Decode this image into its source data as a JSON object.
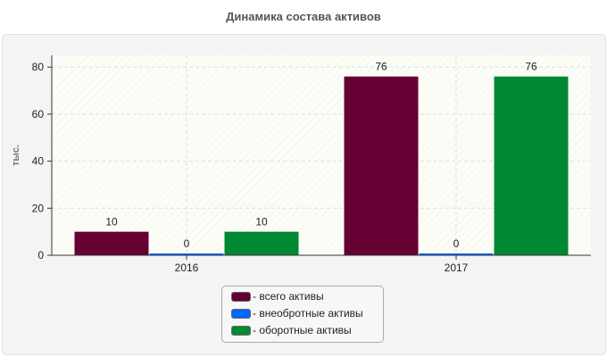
{
  "chart_data": {
    "type": "bar",
    "title": "Динамика состава активов",
    "ylabel": "тыс.",
    "xlabel": "",
    "categories": [
      "2016",
      "2017"
    ],
    "ylim": [
      0,
      85
    ],
    "yticks": [
      0,
      20,
      40,
      60,
      80
    ],
    "grid": true,
    "legend_position": "bottom",
    "series": [
      {
        "name": "- всего активы",
        "values": [
          10,
          76
        ],
        "color": "#660033"
      },
      {
        "name": "- внеобротные активы",
        "values": [
          0,
          0
        ],
        "color": "#0066ff"
      },
      {
        "name": "- оборотные активы",
        "values": [
          10,
          76
        ],
        "color": "#008833"
      }
    ]
  }
}
